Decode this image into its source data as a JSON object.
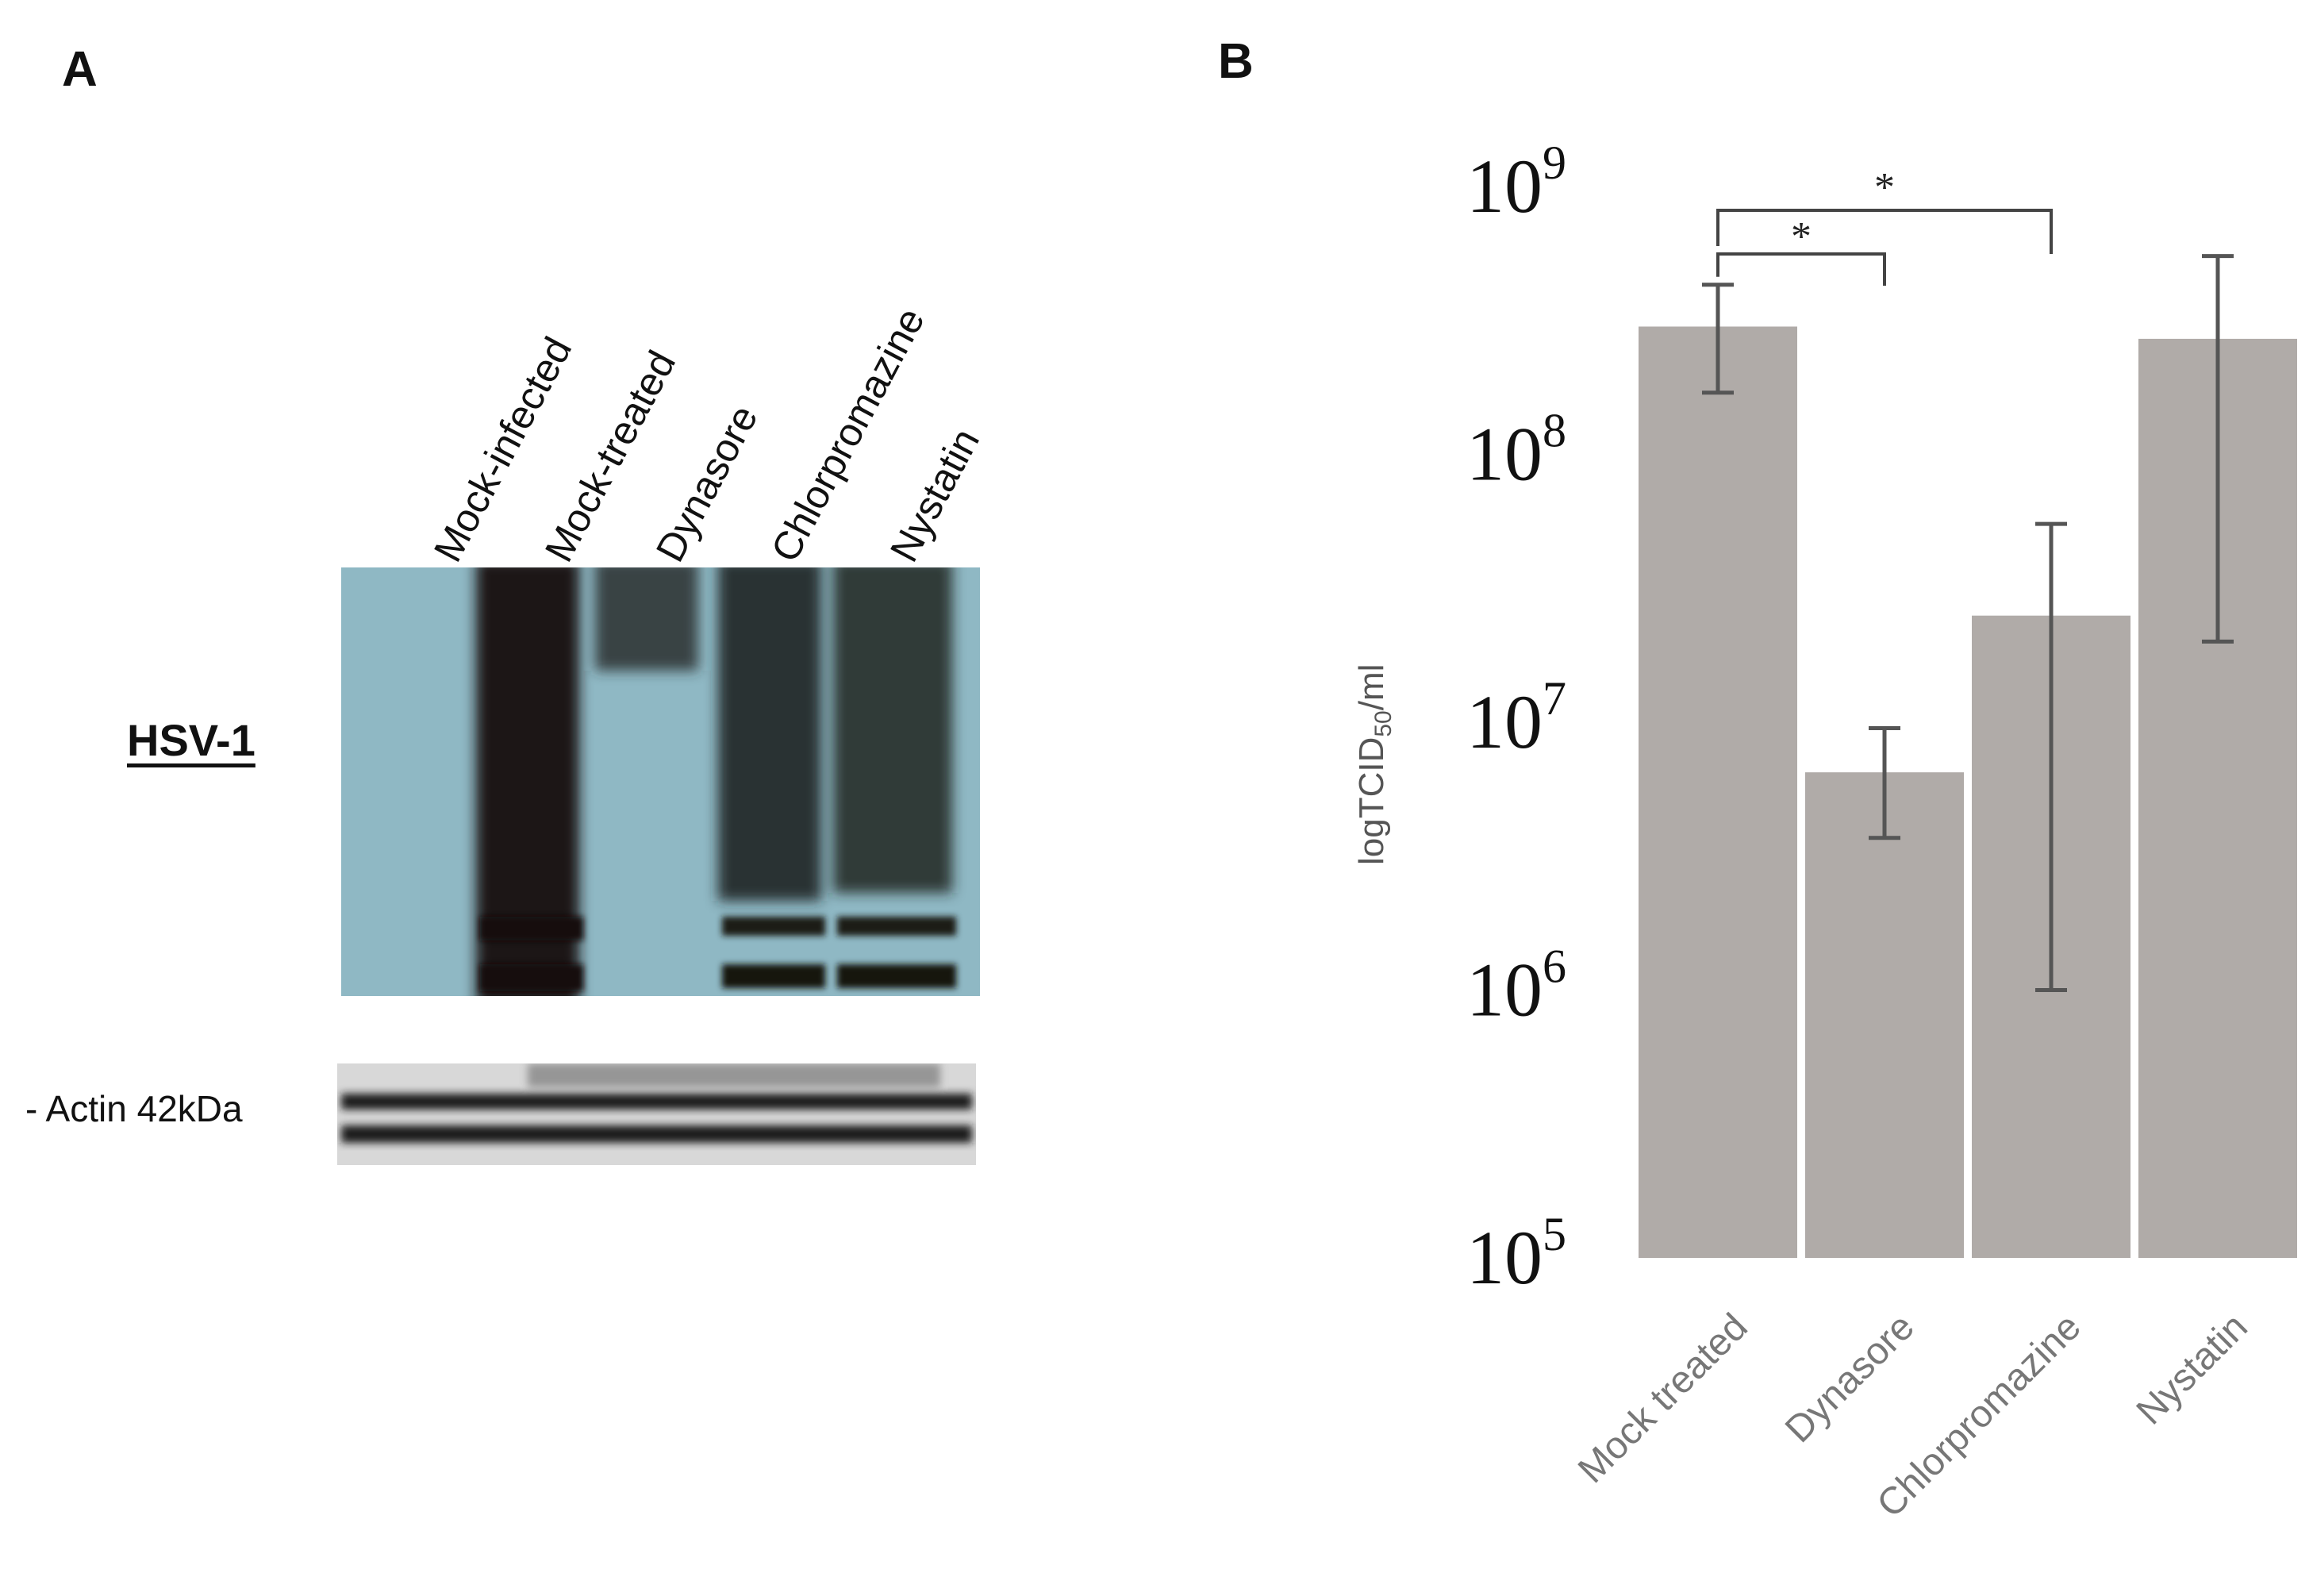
{
  "panel_a": {
    "letter": "A",
    "lanes": [
      "Mock-infected",
      "Mock-treated",
      "Dynasore",
      "Chlorpromazine",
      "Nystatin"
    ],
    "hsv_label": "HSV-1",
    "actin_label": "- Actin 42kDa",
    "colors": {
      "hsv_background": "#8fb8c4",
      "band": "#1a1412",
      "actin_background": "#d8d8d8"
    }
  },
  "panel_b": {
    "letter": "B",
    "significance_marks": [
      "*",
      "*"
    ]
  },
  "chart_data": {
    "type": "bar",
    "categories": [
      "Mock treated",
      "Dynasore",
      "Chlorpromazine",
      "Nystatin"
    ],
    "values": [
      300000000,
      6500000,
      25000000,
      270000000
    ],
    "error_low": [
      170000000,
      3700000,
      1000000,
      20000000
    ],
    "error_high": [
      430000000,
      9500000,
      55000000,
      550000000
    ],
    "ylabel_main": "logTCID",
    "ylabel_sub": "50",
    "ylabel_tail": "/ml",
    "yscale": "log",
    "ylim": [
      100000,
      1000000000
    ],
    "yticks": [
      {
        "base": "10",
        "exp": "5",
        "value": 100000
      },
      {
        "base": "10",
        "exp": "6",
        "value": 1000000
      },
      {
        "base": "10",
        "exp": "7",
        "value": 10000000
      },
      {
        "base": "10",
        "exp": "8",
        "value": 100000000
      },
      {
        "base": "10",
        "exp": "9",
        "value": 1000000000
      }
    ],
    "bar_color": "#b0aba8",
    "grid": false,
    "legend": "none"
  }
}
